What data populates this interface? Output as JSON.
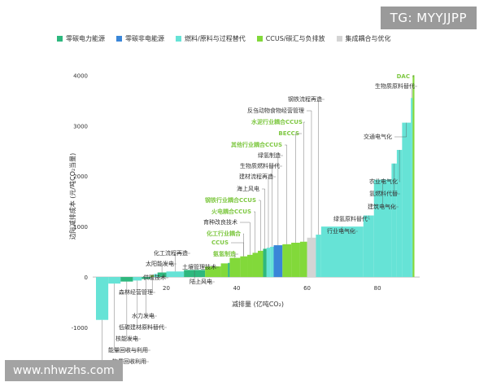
{
  "watermark_top": "TG: MYYJJPP",
  "watermark_bottom": "www.nhwzhs.com",
  "chart_data": {
    "type": "bar",
    "subtype": "marginal-abatement-cost-curve",
    "xlabel": "减排量 (亿吨CO₂)",
    "ylabel": "边际减排成本 (元/吨CO₂当量)",
    "xlim": [
      0,
      92
    ],
    "ylim": [
      -1000,
      4200
    ],
    "xticks": [
      20,
      40,
      60,
      80
    ],
    "yticks": [
      -1000,
      0,
      1000,
      2000,
      3000,
      4000
    ],
    "legend": [
      {
        "label": "零碳电力能源",
        "color": "#2eb87e"
      },
      {
        "label": "零碳非电能源",
        "color": "#3a86d8"
      },
      {
        "label": "燃料/原料与过程替代",
        "color": "#66e3d6"
      },
      {
        "label": "CCUS/碳汇与负排放",
        "color": "#82d93a"
      },
      {
        "label": "集成耦合与优化",
        "color": "#d4d4d4"
      }
    ],
    "segments": [
      {
        "name": "物质回收利用",
        "category": "燃料/原料与过程替代",
        "x0": 0,
        "x1": 3.5,
        "y": -850
      },
      {
        "name": "能量回收与利用",
        "category": "燃料/原料与过程替代",
        "x0": 3.5,
        "x1": 7.0,
        "y": -130
      },
      {
        "name": "核能发电",
        "category": "零碳电力能源",
        "x0": 7.0,
        "x1": 10.5,
        "y": -90
      },
      {
        "name": "低碳建材原料替代",
        "category": "燃料/原料与过程替代",
        "x0": 10.5,
        "x1": 13.0,
        "y": -70
      },
      {
        "name": "水力发电",
        "category": "零碳电力能源",
        "x0": 13.0,
        "x1": 15.5,
        "y": -40
      },
      {
        "name": "森林经营管理",
        "category": "CCUS/碳汇与负排放",
        "x0": 15.5,
        "x1": 16.5,
        "y": 40
      },
      {
        "name": "供暖技术",
        "category": "燃料/原料与过程替代",
        "x0": 16.5,
        "x1": 17.5,
        "y": 60
      },
      {
        "name": "太阳能发电",
        "category": "零碳电力能源",
        "x0": 17.5,
        "x1": 20.0,
        "y": 90
      },
      {
        "name": "化工流程再造",
        "category": "燃料/原料与过程替代",
        "x0": 20.0,
        "x1": 25.0,
        "y": 110
      },
      {
        "name": "陆上风电",
        "category": "零碳电力能源",
        "x0": 25.0,
        "x1": 31.0,
        "y": 140
      },
      {
        "name": "土壤管理技术",
        "category": "CCUS/碳汇与负排放",
        "x0": 31.0,
        "x1": 35.5,
        "y": 210
      },
      {
        "name": "",
        "category": "CCUS/碳汇与负排放",
        "x0": 35.5,
        "x1": 37.5,
        "y": 270
      },
      {
        "name": "",
        "category": "零碳电力能源",
        "x0": 37.5,
        "x1": 38.0,
        "y": 280
      },
      {
        "name": "氨氢制造",
        "category": "CCUS/碳汇与负排放",
        "x0": 38.0,
        "x1": 41.0,
        "y": 380
      },
      {
        "name": "化工行业耦合CCUS",
        "category": "CCUS/碳汇与负排放",
        "x0": 41.0,
        "x1": 43.0,
        "y": 410
      },
      {
        "name": "育种改良技术",
        "category": "CCUS/碳汇与负排放",
        "x0": 43.0,
        "x1": 44.5,
        "y": 440
      },
      {
        "name": "火电耦合CCUS",
        "category": "CCUS/碳汇与负排放",
        "x0": 44.5,
        "x1": 46.0,
        "y": 480
      },
      {
        "name": "钢铁行业耦合CCUS",
        "category": "CCUS/碳汇与负排放",
        "x0": 46.0,
        "x1": 47.5,
        "y": 520
      },
      {
        "name": "海上风电",
        "category": "零碳电力能源",
        "x0": 47.5,
        "x1": 48.5,
        "y": 560
      },
      {
        "name": "建材流程再造",
        "category": "燃料/原料与过程替代",
        "x0": 48.5,
        "x1": 49.5,
        "y": 580
      },
      {
        "name": "生物质燃料替代",
        "category": "燃料/原料与过程替代",
        "x0": 49.5,
        "x1": 50.5,
        "y": 600
      },
      {
        "name": "绿氢制造",
        "category": "零碳非电能源",
        "x0": 50.5,
        "x1": 53.0,
        "y": 630
      },
      {
        "name": "其他行业耦合CCUS",
        "category": "CCUS/碳汇与负排放",
        "x0": 53.0,
        "x1": 55.5,
        "y": 650
      },
      {
        "name": "BECCS",
        "category": "CCUS/碳汇与负排放",
        "x0": 55.5,
        "x1": 58.0,
        "y": 680
      },
      {
        "name": "水泥行业耦合CCUS",
        "category": "CCUS/碳汇与负排放",
        "x0": 58.0,
        "x1": 60.0,
        "y": 700
      },
      {
        "name": "反刍动物食物经营管理",
        "category": "集成耦合与优化",
        "x0": 60.0,
        "x1": 62.5,
        "y": 780
      },
      {
        "name": "钢铁流程再造",
        "category": "燃料/原料与过程替代",
        "x0": 62.5,
        "x1": 64.0,
        "y": 840
      },
      {
        "name": "行业电气化",
        "category": "燃料/原料与过程替代",
        "x0": 64.0,
        "x1": 76.0,
        "y": 1000
      },
      {
        "name": "绿氢原料替代",
        "category": "燃料/原料与过程替代",
        "x0": 76.0,
        "x1": 79.0,
        "y": 1220
      },
      {
        "name": "建筑电气化",
        "category": "燃料/原料与过程替代",
        "x0": 79.0,
        "x1": 84.0,
        "y": 1930
      },
      {
        "name": "氢燃料代替",
        "category": "燃料/原料与过程替代",
        "x0": 84.0,
        "x1": 85.5,
        "y": 2250
      },
      {
        "name": "农业电气化",
        "category": "燃料/原料与过程替代",
        "x0": 85.5,
        "x1": 87.0,
        "y": 2520
      },
      {
        "name": "交通电气化",
        "category": "燃料/原料与过程替代",
        "x0": 87.0,
        "x1": 89.5,
        "y": 3060
      },
      {
        "name": "生物质原料替代",
        "category": "燃料/原料与过程替代",
        "x0": 89.5,
        "x1": 90.0,
        "y": 3550
      },
      {
        "name": "DAC",
        "category": "CCUS/碳汇与负排放",
        "x0": 90.0,
        "x1": 90.5,
        "y": 4000
      }
    ],
    "annotations": [
      {
        "text": "DAC",
        "target": "DAC",
        "green": true
      },
      {
        "text": "生物质原料替代",
        "target": "生物质原料替代",
        "green": false
      },
      {
        "text": "钢铁流程再造",
        "target": "钢铁流程再造",
        "green": false
      },
      {
        "text": "反刍动物食物经营管理",
        "target": "反刍动物食物经营管理",
        "green": false
      },
      {
        "text": "水泥行业耦合CCUS",
        "target": "水泥行业耦合CCUS",
        "green": true
      },
      {
        "text": "交通电气化",
        "target": "交通电气化",
        "green": false
      },
      {
        "text": "BECCS",
        "target": "BECCS",
        "green": true
      },
      {
        "text": "其他行业耦合CCUS",
        "target": "其他行业耦合CCUS",
        "green": true
      },
      {
        "text": "绿氢制造",
        "target": "绿氢制造",
        "green": false
      },
      {
        "text": "生物质燃料替代",
        "target": "生物质燃料替代",
        "green": false
      },
      {
        "text": "农业电气化",
        "target": "农业电气化",
        "green": false
      },
      {
        "text": "建材流程再造",
        "target": "建材流程再造",
        "green": false
      },
      {
        "text": "氢燃料代替",
        "target": "氢燃料代替",
        "green": false
      },
      {
        "text": "海上风电",
        "target": "海上风电",
        "green": false
      },
      {
        "text": "建筑电气化",
        "target": "建筑电气化",
        "green": false
      },
      {
        "text": "钢铁行业耦合CCUS",
        "target": "钢铁行业耦合CCUS",
        "green": true
      },
      {
        "text": "绿氢原料替代",
        "target": "绿氢原料替代",
        "green": false
      },
      {
        "text": "火电耦合CCUS",
        "target": "火电耦合CCUS",
        "green": true
      },
      {
        "text": "行业电气化",
        "target": "行业电气化",
        "green": false
      },
      {
        "text": "育种改良技术",
        "target": "育种改良技术",
        "green": false
      },
      {
        "text": "化工行业耦合",
        "target": "化工行业耦合CCUS",
        "green": true
      },
      {
        "text": "CCUS",
        "target": "化工行业耦合CCUS",
        "green": true
      },
      {
        "text": "化工流程再造",
        "target": "化工流程再造",
        "green": false
      },
      {
        "text": "氨氢制造",
        "target": "氨氢制造",
        "green": true
      },
      {
        "text": "太阳能发电",
        "target": "太阳能发电",
        "green": false
      },
      {
        "text": "土壤管理技术",
        "target": "土壤管理技术",
        "green": false
      },
      {
        "text": "供暖技术",
        "target": "供暖技术",
        "green": false
      },
      {
        "text": "陆上风电",
        "target": "陆上风电",
        "green": false
      },
      {
        "text": "森林经营管理",
        "target": "森林经营管理",
        "green": false
      },
      {
        "text": "水力发电",
        "target": "水力发电",
        "green": false
      },
      {
        "text": "低碳建材原料替代",
        "target": "低碳建材原料替代",
        "green": false
      },
      {
        "text": "核能发电",
        "target": "核能发电",
        "green": false
      },
      {
        "text": "能量回收与利用",
        "target": "能量回收与利用",
        "green": false
      },
      {
        "text": "物质回收利用",
        "target": "物质回收利用",
        "green": false
      }
    ]
  }
}
